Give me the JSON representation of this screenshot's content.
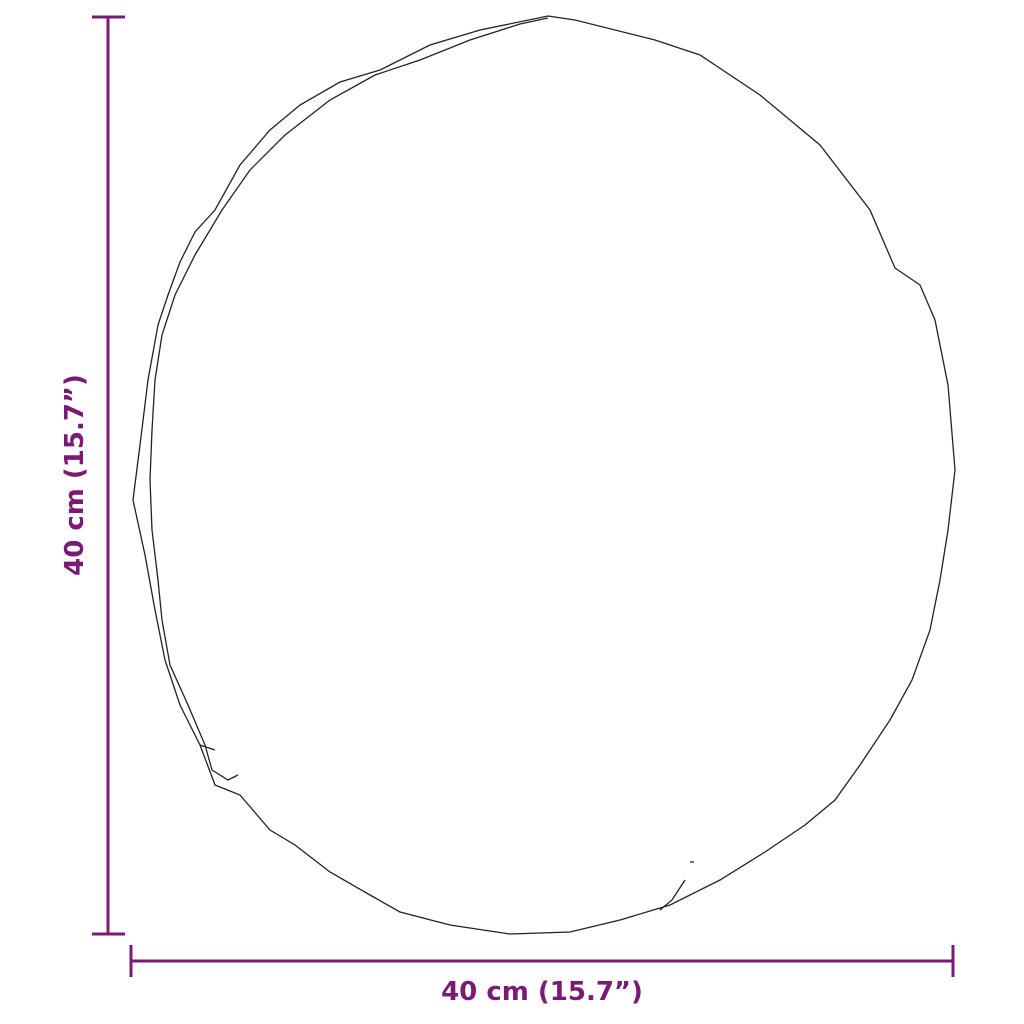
{
  "dimensions": {
    "width_label": "40 cm (15.7”)",
    "height_label": "40 cm (15.7”)"
  },
  "colors": {
    "dimension_line": "#7b1a74",
    "outline": "#222222"
  },
  "object": "round mirror outline"
}
